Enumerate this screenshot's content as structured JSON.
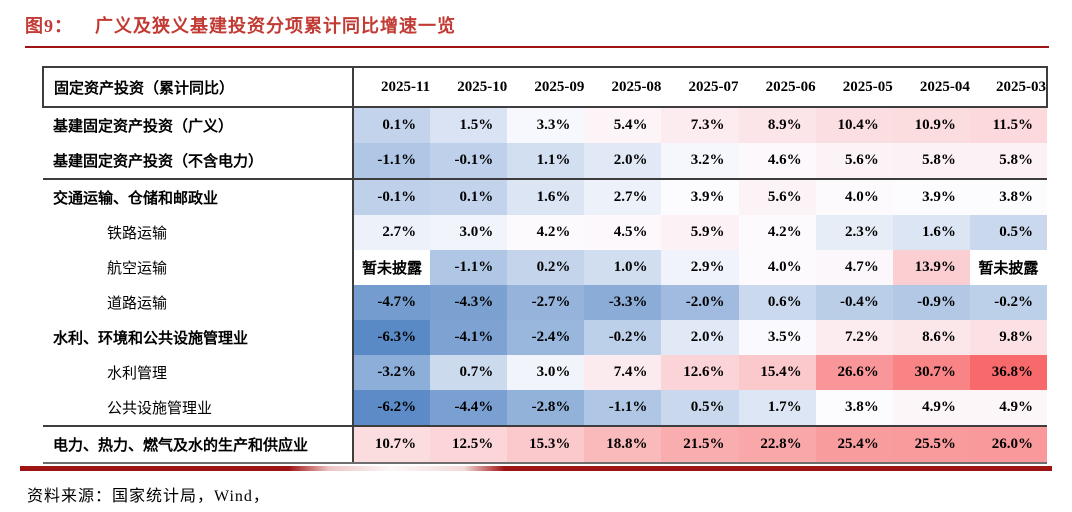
{
  "figure": {
    "label": "图9：",
    "title": "广义及狭义基建投资分项累计同比增速一览"
  },
  "source": "资料来源：国家统计局，Wind，",
  "colors": {
    "title_red": "#C23A34",
    "rule_dark_red": "#9E1313",
    "border_dark": "#3D3D3D",
    "scale_low": "#5A8AC6",
    "scale_mid": "#FCFCFF",
    "scale_high": "#F8696B"
  },
  "chart_data": {
    "type": "heatmap",
    "title": "广义及狭义基建投资分项累计同比增速一览",
    "header_label": "固定资产投资（累计同比）",
    "columns": [
      "2025-11",
      "2025-10",
      "2025-09",
      "2025-08",
      "2025-07",
      "2025-06",
      "2025-05",
      "2025-04",
      "2025-03"
    ],
    "missing_text": "暂未披露",
    "colorscale": {
      "min": -6.3,
      "mid": 3.65,
      "max": 36.8,
      "min_color": "#5A8AC6",
      "mid_color": "#FCFCFF",
      "max_color": "#F8696B"
    },
    "rows": [
      {
        "label": "基建固定资产投资（广义）",
        "bold": true,
        "indent": false,
        "separator_after": false,
        "values": [
          "0.1%",
          "1.5%",
          "3.3%",
          "5.4%",
          "7.3%",
          "8.9%",
          "10.4%",
          "10.9%",
          "11.5%"
        ]
      },
      {
        "label": "基建固定资产投资（不含电力）",
        "bold": true,
        "indent": false,
        "separator_after": true,
        "values": [
          "-1.1%",
          "-0.1%",
          "1.1%",
          "2.0%",
          "3.2%",
          "4.6%",
          "5.6%",
          "5.8%",
          "5.8%"
        ]
      },
      {
        "label": "交通运输、仓储和邮政业",
        "bold": true,
        "indent": false,
        "separator_after": false,
        "values": [
          "-0.1%",
          "0.1%",
          "1.6%",
          "2.7%",
          "3.9%",
          "5.6%",
          "4.0%",
          "3.9%",
          "3.8%"
        ]
      },
      {
        "label": "铁路运输",
        "bold": false,
        "indent": true,
        "separator_after": false,
        "values": [
          "2.7%",
          "3.0%",
          "4.2%",
          "4.5%",
          "5.9%",
          "4.2%",
          "2.3%",
          "1.6%",
          "0.5%"
        ]
      },
      {
        "label": "航空运输",
        "bold": false,
        "indent": true,
        "separator_after": false,
        "values": [
          "暂未披露",
          "-1.1%",
          "0.2%",
          "1.0%",
          "2.9%",
          "4.0%",
          "4.7%",
          "13.9%",
          "暂未披露"
        ]
      },
      {
        "label": "道路运输",
        "bold": false,
        "indent": true,
        "separator_after": false,
        "values": [
          "-4.7%",
          "-4.3%",
          "-2.7%",
          "-3.3%",
          "-2.0%",
          "0.6%",
          "-0.4%",
          "-0.9%",
          "-0.2%"
        ]
      },
      {
        "label": "水利、环境和公共设施管理业",
        "bold": true,
        "indent": false,
        "separator_after": false,
        "values": [
          "-6.3%",
          "-4.1%",
          "-2.4%",
          "-0.2%",
          "2.0%",
          "3.5%",
          "7.2%",
          "8.6%",
          "9.8%"
        ]
      },
      {
        "label": "水利管理",
        "bold": false,
        "indent": true,
        "separator_after": false,
        "values": [
          "-3.2%",
          "0.7%",
          "3.0%",
          "7.4%",
          "12.6%",
          "15.4%",
          "26.6%",
          "30.7%",
          "36.8%"
        ]
      },
      {
        "label": "公共设施管理业",
        "bold": false,
        "indent": true,
        "separator_after": true,
        "values": [
          "-6.2%",
          "-4.4%",
          "-2.8%",
          "-1.1%",
          "0.5%",
          "1.7%",
          "3.8%",
          "4.9%",
          "4.9%"
        ]
      },
      {
        "label": "电力、热力、燃气及水的生产和供应业",
        "bold": true,
        "indent": false,
        "separator_after": false,
        "values": [
          "10.7%",
          "12.5%",
          "15.3%",
          "18.8%",
          "21.5%",
          "22.8%",
          "25.4%",
          "25.5%",
          "26.0%"
        ]
      }
    ]
  }
}
